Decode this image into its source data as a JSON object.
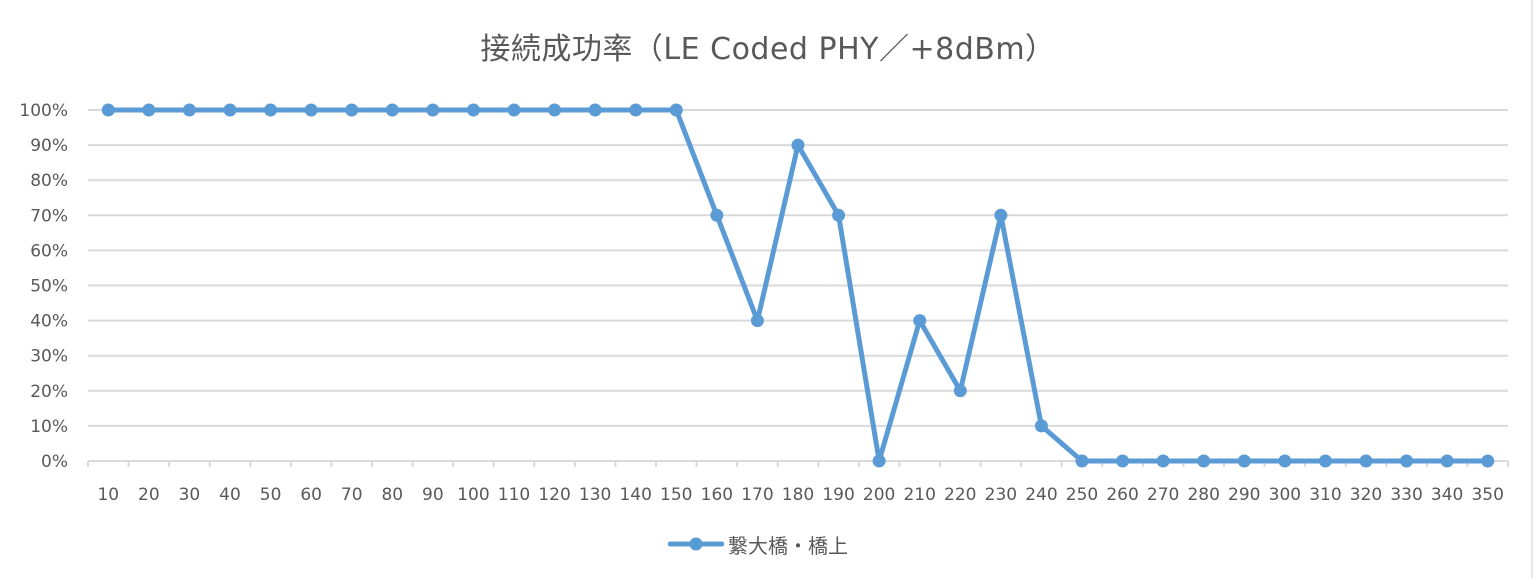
{
  "chart_data": {
    "type": "line",
    "title": "接続成功率（LE Coded PHY／+8dBm）",
    "xlabel": "",
    "ylabel": "",
    "categories": [
      "10",
      "20",
      "30",
      "40",
      "50",
      "60",
      "70",
      "80",
      "90",
      "100",
      "110",
      "120",
      "130",
      "140",
      "150",
      "160",
      "170",
      "180",
      "190",
      "200",
      "210",
      "220",
      "230",
      "240",
      "250",
      "260",
      "270",
      "280",
      "290",
      "300",
      "310",
      "320",
      "330",
      "340",
      "350"
    ],
    "series": [
      {
        "name": "繋大橋・橋上",
        "color": "#5b9bd5",
        "values": [
          100,
          100,
          100,
          100,
          100,
          100,
          100,
          100,
          100,
          100,
          100,
          100,
          100,
          100,
          100,
          70,
          40,
          90,
          70,
          0,
          40,
          20,
          70,
          10,
          0,
          0,
          0,
          0,
          0,
          0,
          0,
          0,
          0,
          0,
          0
        ]
      }
    ],
    "y_ticks": [
      "0%",
      "10%",
      "20%",
      "30%",
      "40%",
      "50%",
      "60%",
      "70%",
      "80%",
      "90%",
      "100%"
    ],
    "ylim": [
      0,
      100
    ],
    "grid": true,
    "legend_position": "bottom"
  }
}
